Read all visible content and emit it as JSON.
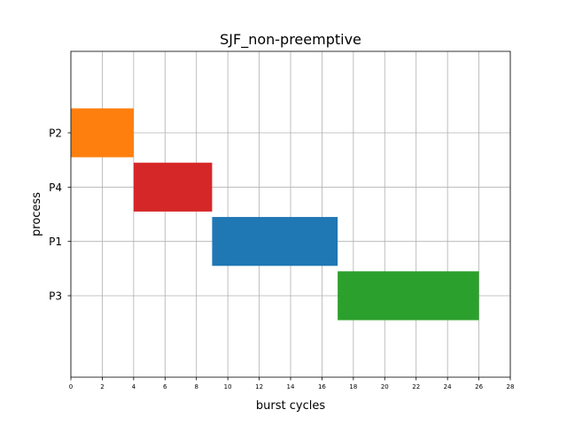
{
  "chart_data": {
    "type": "gantt",
    "title": "SJF_non-preemptive",
    "xlabel": "burst cycles",
    "ylabel": "process",
    "xlim": [
      0,
      28
    ],
    "ylim": [
      0,
      6
    ],
    "xticks": [
      0,
      2,
      4,
      6,
      8,
      10,
      12,
      14,
      16,
      18,
      20,
      22,
      24,
      26,
      28
    ],
    "yticks": [
      {
        "label": "P3",
        "value": 1.5
      },
      {
        "label": "P1",
        "value": 2.5
      },
      {
        "label": "P4",
        "value": 3.5
      },
      {
        "label": "P2",
        "value": 4.5
      }
    ],
    "grid": true,
    "tasks": [
      {
        "process": "P2",
        "start": 0,
        "end": 4,
        "y": 4.5,
        "color": "#ff7f0e"
      },
      {
        "process": "P4",
        "start": 4,
        "end": 9,
        "y": 3.5,
        "color": "#d62728"
      },
      {
        "process": "P1",
        "start": 9,
        "end": 17,
        "y": 2.5,
        "color": "#1f77b4"
      },
      {
        "process": "P3",
        "start": 17,
        "end": 26,
        "y": 1.5,
        "color": "#2ca02c"
      }
    ]
  }
}
